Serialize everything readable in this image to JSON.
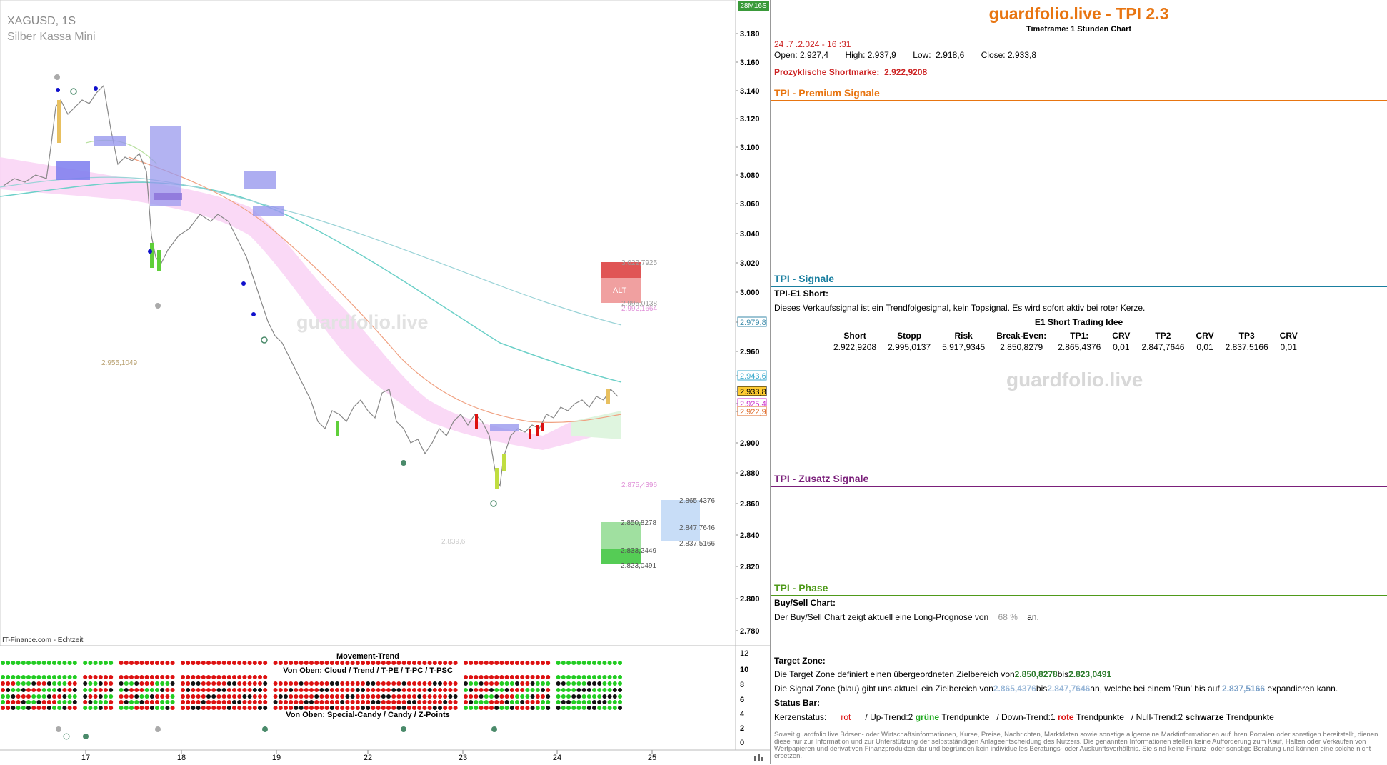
{
  "chart": {
    "symbol": "XAGUSD, 1S",
    "name": "Silber Kassa Mini",
    "timer": "28M16S",
    "source": "IT-Finance.com - Echtzeit",
    "watermark": "guardfolio.live",
    "price_axis": [
      "3.180",
      "3.160",
      "3.140",
      "3.120",
      "3.100",
      "3.080",
      "3.060",
      "3.040",
      "3.020",
      "3.000",
      "2.979,8",
      "2.960",
      "2.943,6",
      "2.933,8",
      "2.925,4",
      "2.922,9",
      "2.900",
      "2.880",
      "2.860",
      "2.840",
      "2.820",
      "2.800",
      "2.780"
    ],
    "date_axis": [
      "17",
      "18",
      "19",
      "22",
      "23",
      "24",
      "25"
    ],
    "indicator_axis": [
      "12",
      "10",
      "8",
      "6",
      "4",
      "2",
      "0"
    ],
    "levels": {
      "alt": "ALT",
      "l1": "3.022,7925",
      "l2": "2.995,0138",
      "l3": "2.992,1664",
      "l4": "2.955,1049",
      "l5": "2.875,4396",
      "l6": "2.865,4376",
      "l7": "2.850,8278",
      "l8": "2.847,7646",
      "l9": "2.837,5166",
      "l10": "2.833,2449",
      "l11": "2.823,0491",
      "l12": "2.839,6"
    },
    "movement_title": "Movement-Trend",
    "movement_sub1": "Von Oben: Cloud / Trend / T-PE / T-PC / T-PSC",
    "movement_sub2": "Von Oben: Special-Candy / Candy / Z-Points",
    "colors": {
      "bull": "#22cc22",
      "bear": "#dd1111",
      "cloud": "#f9d5f5",
      "blue_box": "#8888ee",
      "red_zone": "#e35555",
      "green_zone": "#55cc55",
      "signal_zone": "#c8ddf7"
    }
  },
  "panel": {
    "title": "guardfolio.live - TPI 2.3",
    "timeframe_label": "Timeframe:",
    "timeframe_value": "1 Stunden Chart",
    "datetime": "24 .7 .2.024 - 16 :31",
    "open_label": "Open:",
    "open": "2.927,4",
    "high_label": "High:",
    "high": "2.937,9",
    "low_label": "Low:",
    "low": "2.918,6",
    "close_label": "Close:",
    "close": "2.933,8",
    "shortmarke_label": "Prozyklische Shortmarke:",
    "shortmarke": "2.922,9208",
    "premium_title": "TPI - Premium Signale",
    "signale_title": "TPI - Signale",
    "signal_name": "TPI-E1 Short:",
    "signal_desc": "Dieses Verkaufssignal ist ein Trendfolgesignal, kein Topsignal. Es wird sofort aktiv bei roter Kerze.",
    "idea_title": "E1 Short Trading Idee",
    "trade_headers": [
      "Short",
      "Stopp",
      "Risk",
      "Break-Even:",
      "TP1:",
      "CRV",
      "TP2",
      "CRV",
      "TP3",
      "CRV"
    ],
    "trade_values": [
      "2.922,9208",
      "2.995,0137",
      "5.917,9345",
      "2.850,8279",
      "2.865,4376",
      "0,01",
      "2.847,7646",
      "0,01",
      "2.837,5166",
      "0,01"
    ],
    "watermark": "guardfolio.live",
    "zusatz_title": "TPI - Zusatz Signale",
    "phase_title": "TPI - Phase",
    "buysell_title": "Buy/Sell Chart:",
    "buysell_pre": "Der Buy/Sell Chart zeigt aktuell eine Long-Prognose von",
    "buysell_value": "68 %",
    "buysell_post": "an.",
    "target_title": "Target Zone:",
    "target_pre": "Die Target Zone definiert einen übergeordneten Zielbereich von",
    "target_from": "2.850,8278",
    "target_mid": "bis",
    "target_to": "2.823,0491",
    "signalzone_pre": "Die Signal Zone (blau) gibt uns aktuell ein Zielbereich von",
    "signalzone_from": "2.865,4376",
    "signalzone_mid": "bis",
    "signalzone_to": "2.847,7646",
    "signalzone_post": "an, welche bei einem 'Run' bis auf",
    "signalzone_run": "2.837,5166",
    "signalzone_end": "expandieren kann.",
    "status_title": "Status Bar:",
    "kerzen_label": "Kerzenstatus:",
    "kerzen_value": "rot",
    "up_label": "/ Up-Trend:2",
    "up_word": "grüne",
    "up_post": "Trendpunkte",
    "down_label": "/ Down-Trend:1",
    "down_word": "rote",
    "down_post": "Trendpunkte",
    "null_label": "/ Null-Trend:2",
    "null_word": "schwarze",
    "null_post": "Trendpunkte",
    "disclaimer": "Soweit guardfolio live Börsen- oder Wirtschaftsinformationen, Kurse, Preise, Nachrichten, Marktdaten sowie sonstige allgemeine Marktinformationen auf ihren Portalen oder sonstigen bereitstellt, dienen diese nur zur Information und zur Unterstützung der selbstständigen Anlageentscheidung des Nutzers. Die genannten Informationen stellen keine Aufforderung zum Kauf, Halten oder Verkaufen von Wertpapieren und derivativen Finanzprodukten dar und begründen kein individuelles Beratungs- oder Auskunftsverhältnis. Sie sind keine Finanz- oder sonstige Beratung und können eine solche nicht ersetzen."
  }
}
